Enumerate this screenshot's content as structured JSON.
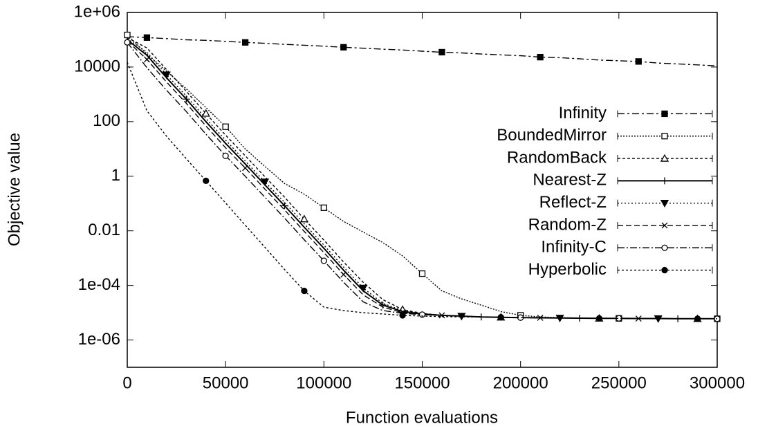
{
  "chart_data": {
    "type": "line",
    "x_label": "Function evaluations",
    "y_label": "Objective value",
    "log_y": true,
    "xlim": [
      0,
      300000
    ],
    "ylim": [
      1e-07,
      1000000
    ],
    "xticks": [
      0,
      50000,
      100000,
      150000,
      200000,
      250000,
      300000
    ],
    "yticks": [
      {
        "value": 1000000,
        "label": "1e+06"
      },
      10000,
      100,
      1,
      0.01,
      {
        "value": 0.0001,
        "label": "1e-04"
      },
      {
        "value": 1e-06,
        "label": "1e-06"
      }
    ],
    "legend": "right",
    "x": [
      0,
      10000,
      20000,
      30000,
      40000,
      50000,
      60000,
      70000,
      80000,
      90000,
      100000,
      110000,
      120000,
      130000,
      140000,
      150000,
      160000,
      170000,
      180000,
      190000,
      200000,
      210000,
      220000,
      230000,
      240000,
      250000,
      260000,
      270000,
      280000,
      290000,
      300000
    ],
    "series": [
      {
        "name": "Infinity",
        "color": "#000000",
        "dash": "10,4,3,4",
        "marker": "filled-square",
        "values": [
          130000,
          120000,
          110000,
          100000,
          95000,
          87000,
          80000,
          74000,
          68000,
          63000,
          58000,
          53000,
          49000,
          45000,
          42000,
          38000,
          35000,
          33000,
          30000,
          28000,
          26000,
          23000,
          22000,
          20000,
          18000,
          17000,
          16000,
          14000,
          13000,
          12000,
          11000
        ]
      },
      {
        "name": "BoundedMirror",
        "color": "#000000",
        "dash": "2,2",
        "marker": "open-square",
        "values": [
          150000,
          30000,
          7000,
          1600,
          330,
          65,
          10,
          2.3,
          0.54,
          0.22,
          0.07,
          0.022,
          0.009,
          0.0037,
          0.0012,
          0.00027,
          6.3e-05,
          3.2e-05,
          1.9e-05,
          1.1e-05,
          8e-06,
          7e-06,
          6.6e-06,
          6.4e-06,
          6.3e-06,
          6.2e-06,
          6.1e-06,
          6.1e-06,
          6e-06,
          6e-06,
          6e-06
        ]
      },
      {
        "name": "RandomBack",
        "color": "#000000",
        "dash": "4,3",
        "marker": "open-triangle",
        "values": [
          120000,
          50000,
          8000,
          1300,
          200,
          32,
          5.6,
          0.96,
          0.17,
          0.027,
          0.0046,
          0.00072,
          0.00013,
          3e-05,
          1.3e-05,
          9.5e-06,
          8e-06,
          7.5e-06,
          7e-06,
          6.8e-06,
          6.6e-06,
          6.5e-06,
          6.4e-06,
          6.3e-06,
          6.2e-06,
          6.2e-06,
          6.1e-06,
          6.1e-06,
          6e-06,
          6e-06,
          6e-06
        ]
      },
      {
        "name": "Nearest-Z",
        "color": "#000000",
        "dash": "none",
        "marker": "plus",
        "values": [
          100000,
          27000,
          4000,
          670,
          100,
          16,
          2.8,
          0.48,
          0.083,
          0.0135,
          0.0023,
          0.00036,
          6.3e-05,
          1.9e-05,
          1.1e-05,
          9e-06,
          8e-06,
          7.5e-06,
          7e-06,
          6.8e-06,
          6.6e-06,
          6.5e-06,
          6.4e-06,
          6.3e-06,
          6.2e-06,
          6.2e-06,
          6.1e-06,
          6.1e-06,
          6e-06,
          6e-06,
          6e-06
        ]
      },
      {
        "name": "Reflect-Z",
        "color": "#000000",
        "dash": "2,3",
        "marker": "filled-triangle-down",
        "values": [
          110000,
          35000,
          5200,
          870,
          130,
          21,
          3.6,
          0.62,
          0.11,
          0.018,
          0.003,
          0.00047,
          8e-05,
          2.2e-05,
          1.2e-05,
          9e-06,
          8e-06,
          7.5e-06,
          7e-06,
          6.8e-06,
          6.6e-06,
          6.5e-06,
          6.4e-06,
          6.3e-06,
          6.2e-06,
          6.2e-06,
          6.1e-06,
          6.1e-06,
          6e-06,
          6e-06,
          6e-06
        ]
      },
      {
        "name": "Random-Z",
        "color": "#000000",
        "dash": "8,4",
        "marker": "cross",
        "values": [
          90000,
          19000,
          2800,
          470,
          70,
          11,
          2,
          0.34,
          0.058,
          0.0095,
          0.0016,
          0.00025,
          4.5e-05,
          1.6e-05,
          1e-05,
          8.5e-06,
          8e-06,
          7.5e-06,
          7e-06,
          6.8e-06,
          6.6e-06,
          6.5e-06,
          6.4e-06,
          6.3e-06,
          6.2e-06,
          6.2e-06,
          6.1e-06,
          6.1e-06,
          6e-06,
          6e-06,
          6e-06
        ]
      },
      {
        "name": "Infinity-C",
        "color": "#000000",
        "dash": "10,3,2,3",
        "marker": "open-circle",
        "values": [
          80000,
          9500,
          1400,
          235,
          35,
          5.6,
          1,
          0.17,
          0.029,
          0.0047,
          0.0008,
          0.00013,
          2.5e-05,
          1.2e-05,
          9.5e-06,
          8.5e-06,
          8e-06,
          7.5e-06,
          7e-06,
          6.8e-06,
          6.6e-06,
          6.5e-06,
          6.4e-06,
          6.3e-06,
          6.2e-06,
          6.2e-06,
          6.1e-06,
          6.1e-06,
          6e-06,
          6e-06,
          6e-06
        ]
      },
      {
        "name": "Hyperbolic",
        "color": "#000000",
        "dash": "3,3",
        "marker": "filled-circle",
        "values": [
          15000,
          250,
          29,
          4.4,
          0.68,
          0.105,
          0.016,
          0.0025,
          0.00038,
          6.3e-05,
          1.6e-05,
          1.2e-05,
          1e-05,
          9e-06,
          8e-06,
          7.5e-06,
          7.2e-06,
          7e-06,
          7e-06,
          6.8e-06,
          6.6e-06,
          6.5e-06,
          6.4e-06,
          6.3e-06,
          6.2e-06,
          6.2e-06,
          6.1e-06,
          6.1e-06,
          6e-06,
          6e-06,
          6e-06
        ]
      }
    ]
  }
}
